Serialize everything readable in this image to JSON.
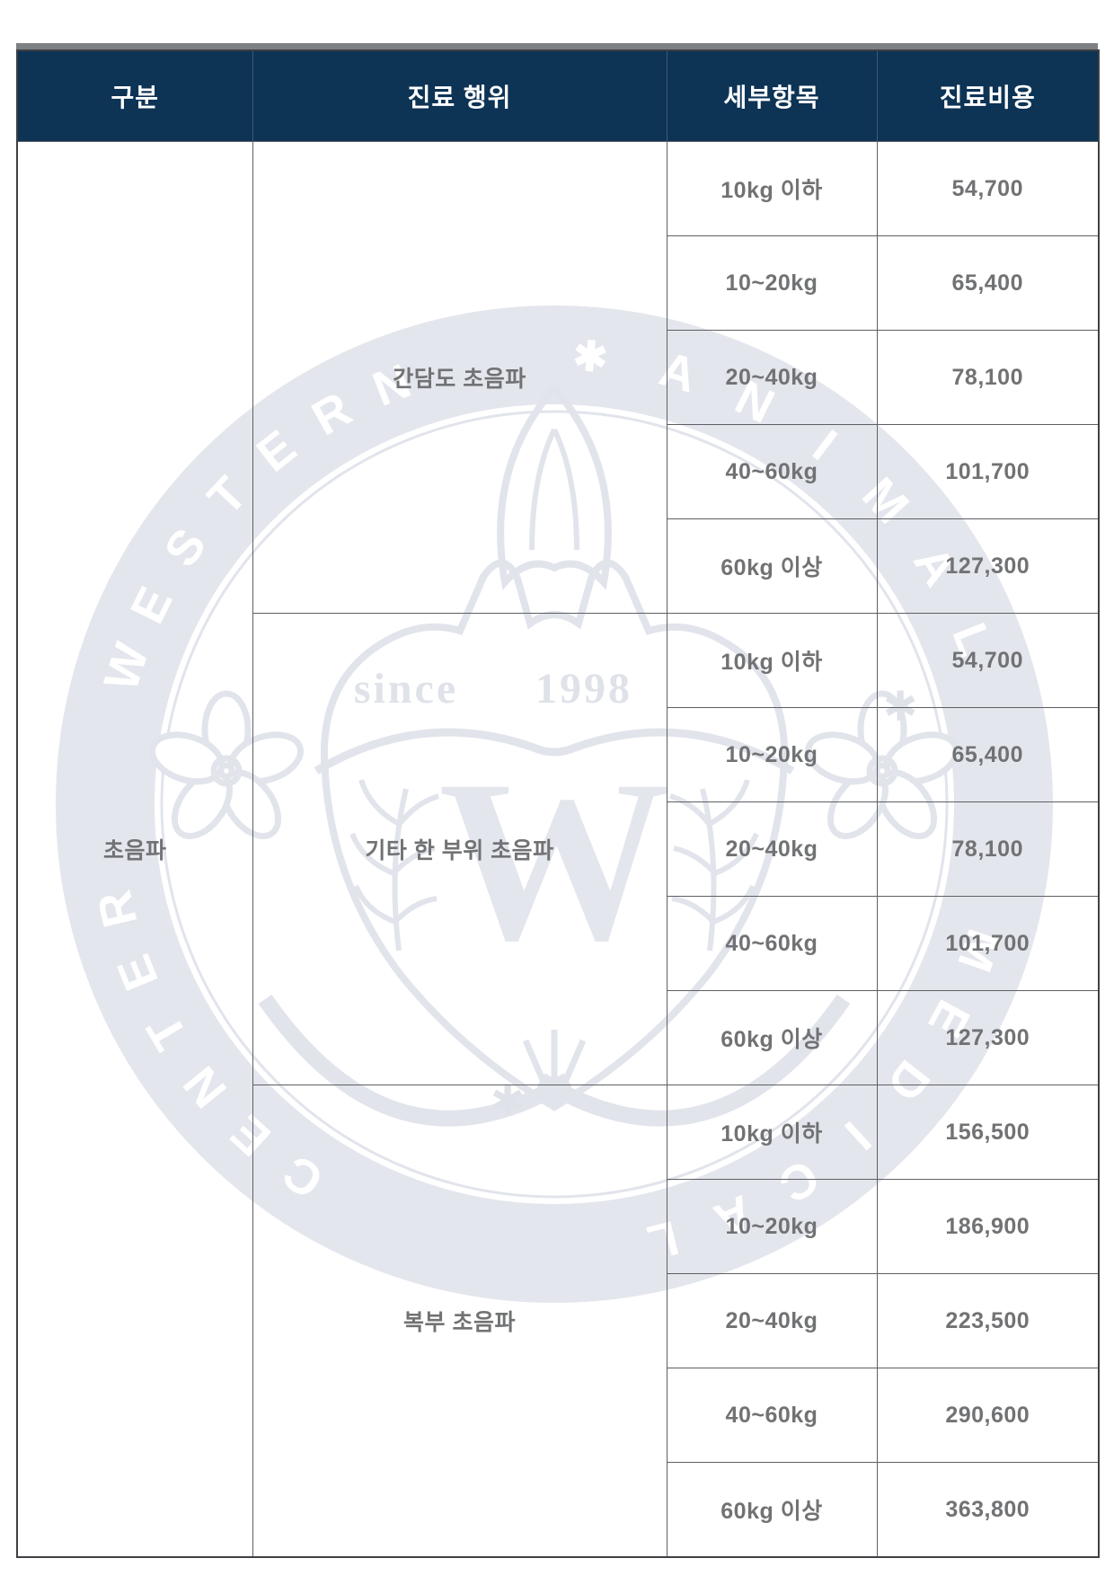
{
  "header": {
    "columns": [
      "구분",
      "진료 행위",
      "세부항목",
      "진료비용"
    ]
  },
  "category": "초음파",
  "sections": [
    {
      "treatment": "간담도 초음파",
      "rows": [
        {
          "detail": "10kg 이하",
          "price": "54,700"
        },
        {
          "detail": "10~20kg",
          "price": "65,400"
        },
        {
          "detail": "20~40kg",
          "price": "78,100"
        },
        {
          "detail": "40~60kg",
          "price": "101,700"
        },
        {
          "detail": "60kg 이상",
          "price": "127,300"
        }
      ]
    },
    {
      "treatment": "기타 한 부위 초음파",
      "rows": [
        {
          "detail": "10kg 이하",
          "price": "54,700"
        },
        {
          "detail": "10~20kg",
          "price": "65,400"
        },
        {
          "detail": "20~40kg",
          "price": "78,100"
        },
        {
          "detail": "40~60kg",
          "price": "101,700"
        },
        {
          "detail": "60kg 이상",
          "price": "127,300"
        }
      ]
    },
    {
      "treatment": "복부 초음파",
      "rows": [
        {
          "detail": "10kg 이하",
          "price": "156,500"
        },
        {
          "detail": "10~20kg",
          "price": "186,900"
        },
        {
          "detail": "20~40kg",
          "price": "223,500"
        },
        {
          "detail": "40~60kg",
          "price": "290,600"
        },
        {
          "detail": "60kg 이상",
          "price": "363,800"
        }
      ]
    }
  ],
  "watermark": {
    "ring_words": [
      "WESTERN",
      "ANIMAL",
      "MEDICAL",
      "CENTER"
    ],
    "separator": "✱",
    "since_label": "since",
    "year_label": "1998",
    "monogram": "W",
    "band_color": "#e4e6ed",
    "line_color": "#e2e4ec",
    "star_color": "#dfe2e9",
    "letter_color": "#ffffff"
  },
  "colors": {
    "header_bg": "#0d3355",
    "header_text": "#ffffff",
    "strip": "#7e8184",
    "outer_border": "#3e4044",
    "inner_border": "#5d5f63",
    "body_text": "#717274"
  }
}
